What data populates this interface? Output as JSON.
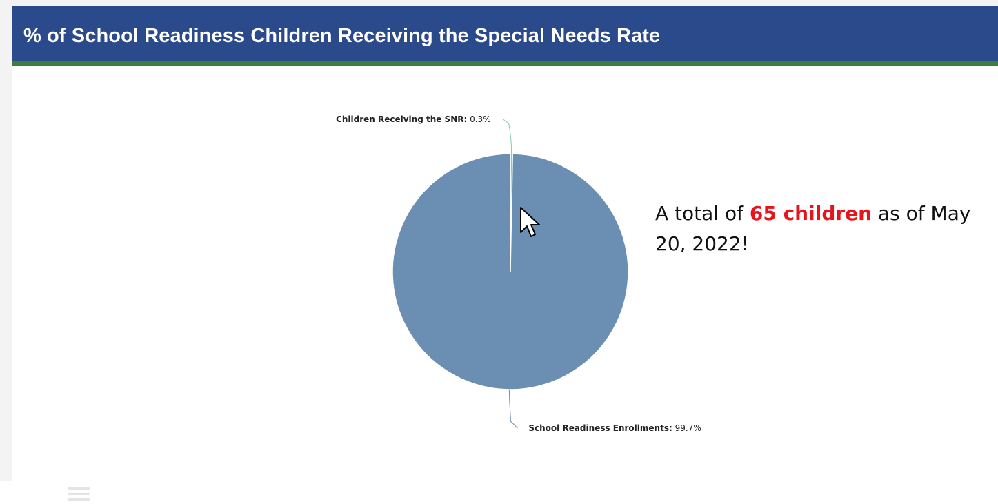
{
  "header": {
    "title": "% of School Readiness Children Receiving the Special Needs Rate"
  },
  "annotation": {
    "prefix": "A total of ",
    "highlight": "65 children",
    "suffix": " as of May 20, 2022!"
  },
  "colors": {
    "header_bg": "#2a4a8c",
    "header_border": "#3f7d3d",
    "slice_main": "#6b8fb3",
    "slice_small": "#8cc9a6",
    "highlight_text": "#e8141c"
  },
  "icons": {
    "menu": "hamburger-menu-icon",
    "cursor": "mouse-pointer-icon"
  },
  "chart_data": {
    "type": "pie",
    "title": "% of School Readiness Children Receiving the Special Needs Rate",
    "slices": [
      {
        "name": "Children Receiving the SNR",
        "value": 0.3,
        "label_value": "0.3%",
        "color": "#8cc9a6"
      },
      {
        "name": "School Readiness Enrollments",
        "value": 99.7,
        "label_value": "99.7%",
        "color": "#6b8fb3"
      }
    ]
  }
}
